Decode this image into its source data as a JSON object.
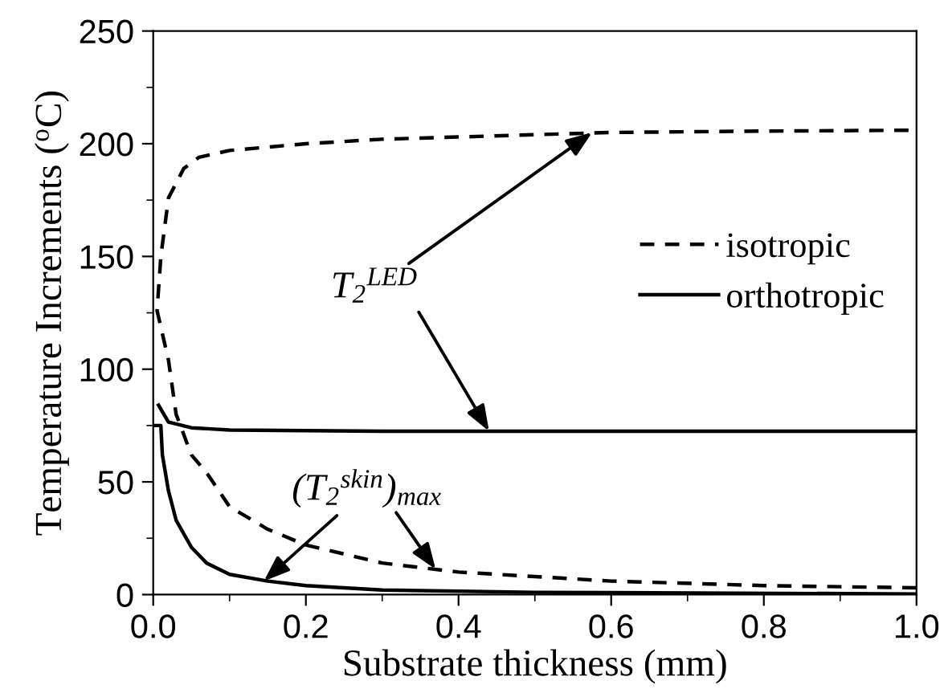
{
  "chart_data": {
    "type": "line",
    "xlabel": "Substrate thickness (mm)",
    "ylabel": "Temperature Increments ($^{o}$C)",
    "xlim": [
      0,
      1.0
    ],
    "xticks": [
      {
        "value": 0,
        "label": "0.0"
      },
      0.2,
      0.4,
      0.6,
      0.8,
      {
        "value": 1.0,
        "label": "1.0"
      }
    ],
    "ylim": [
      0,
      250
    ],
    "yticks": [
      0,
      50,
      100,
      150,
      200,
      250
    ],
    "legend": "right",
    "grid": false,
    "marker": "none",
    "annotations": [
      {
        "text": "T$_{2}$$^{LED}$",
        "x": 0.575,
        "y": 205
      },
      {
        "text": "(T$_{2}$$^{skin}$)$_{max}$",
        "x": 0.145,
        "y": 6
      }
    ],
    "series": [
      {
        "name": "isotropic",
        "color": "#000000",
        "line_style": "dashed",
        "x": [
          1.0,
          0.8,
          0.6,
          0.5,
          0.4,
          0.3,
          0.2,
          0.15,
          0.1,
          0.07,
          0.05,
          0.03,
          0.02,
          0.005,
          0.01,
          0.02,
          0.04,
          0.06,
          0.1,
          0.2,
          0.3,
          0.4,
          0.5,
          0.6,
          0.8,
          1.0
        ],
        "values": [
          3,
          4,
          6,
          8,
          10,
          14,
          22,
          29,
          39,
          54,
          62,
          80,
          104,
          126,
          150,
          176,
          189,
          194,
          197,
          200,
          202,
          203,
          204,
          205,
          205.6,
          206
        ]
      },
      {
        "name": "orthotropic",
        "color": "#000000",
        "line_style": "solid",
        "x": [
          0.007,
          0.02,
          0.05,
          0.1,
          0.3,
          0.6,
          1.0
        ],
        "values": [
          84,
          76.5,
          74,
          73,
          72.5,
          72.5,
          72.5
        ]
      },
      {
        "color": "#000000",
        "line_style": "solid",
        "x": [
          0.003,
          0.01,
          0.012,
          0.02,
          0.03,
          0.05,
          0.07,
          0.1,
          0.15,
          0.2,
          0.3,
          0.5,
          1.0
        ],
        "values": [
          75,
          75,
          62,
          46,
          33,
          21,
          14,
          9,
          6,
          4,
          2,
          1,
          0.3
        ]
      }
    ]
  }
}
